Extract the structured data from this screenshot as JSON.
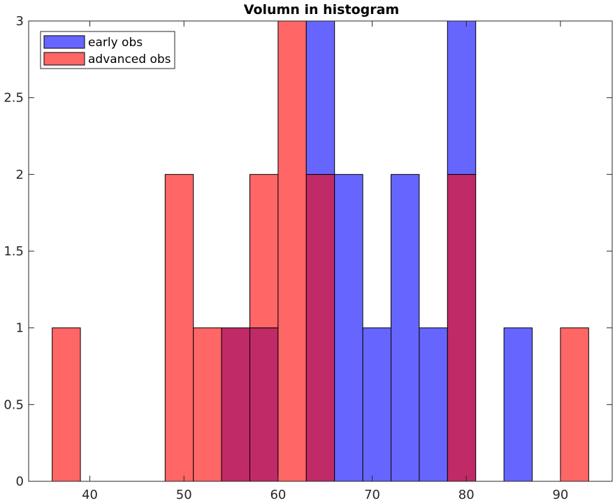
{
  "chart_data": {
    "type": "bar",
    "title": "Volumn in histogram",
    "xlabel": "",
    "ylabel": "",
    "xlim": [
      33.5,
      95.5
    ],
    "ylim": [
      0,
      3
    ],
    "bin_width": 3,
    "x_ticks": [
      40,
      50,
      60,
      70,
      80,
      90
    ],
    "y_ticks": [
      0,
      0.5,
      1,
      1.5,
      2,
      2.5,
      3
    ],
    "x_tick_labels": [
      "40",
      "50",
      "60",
      "70",
      "80",
      "90"
    ],
    "y_tick_labels": [
      "0",
      "0.5",
      "1",
      "1.5",
      "2",
      "2.5",
      "3"
    ],
    "bin_edges": [
      36,
      39,
      42,
      45,
      48,
      51,
      54,
      57,
      60,
      63,
      66,
      69,
      72,
      75,
      78,
      81,
      84,
      87,
      90,
      93
    ],
    "series": [
      {
        "name": "early obs",
        "color": "#6666ff",
        "counts": [
          0,
          0,
          0,
          0,
          0,
          0,
          1,
          1,
          0,
          3,
          2,
          1,
          2,
          1,
          3,
          0,
          1,
          0,
          0
        ]
      },
      {
        "name": "advanced obs",
        "color": "#ff6666",
        "counts": [
          1,
          0,
          0,
          0,
          2,
          1,
          1,
          2,
          3,
          2,
          0,
          0,
          0,
          0,
          2,
          0,
          0,
          0,
          1
        ]
      }
    ],
    "overlap_color": "#c02a66",
    "legend_position": "top-left",
    "grid": false
  }
}
